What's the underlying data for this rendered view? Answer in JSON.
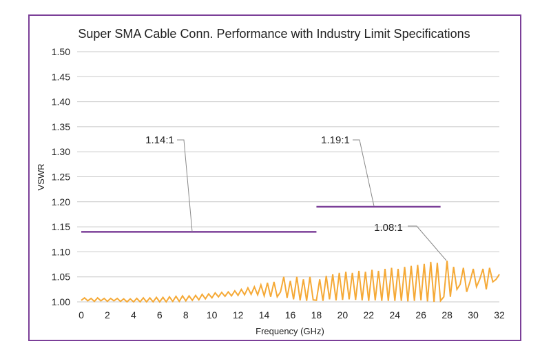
{
  "chart_data": {
    "type": "line",
    "title": "Super SMA Cable Conn. Performance with Industry Limit Specifications",
    "xlabel": "Frequency (GHz)",
    "ylabel": "VSWR",
    "xlim": [
      0,
      32
    ],
    "ylim": [
      1.0,
      1.5
    ],
    "grid": "horizontal",
    "x_ticks": [
      "0",
      "2",
      "4",
      "6",
      "8",
      "10",
      "12",
      "14",
      "16",
      "18",
      "20",
      "22",
      "24",
      "26",
      "28",
      "30",
      "32"
    ],
    "y_ticks": [
      "1.00",
      "1.05",
      "1.10",
      "1.15",
      "1.20",
      "1.25",
      "1.30",
      "1.35",
      "1.40",
      "1.45",
      "1.50"
    ],
    "colors": {
      "measured": "#f5a936",
      "limit": "#7b3f98",
      "frame": "#7b3f98",
      "leader": "#888888"
    },
    "limits": [
      {
        "label": "1.14:1",
        "value": 1.14,
        "x_range": [
          0,
          18
        ]
      },
      {
        "label": "1.19:1",
        "value": 1.19,
        "x_range": [
          18,
          27.5
        ]
      }
    ],
    "annotations": [
      {
        "label": "1.08:1",
        "x": 28,
        "y": 1.08
      }
    ],
    "series": [
      {
        "x": [
          0,
          0.25,
          0.5,
          0.75,
          1,
          1.25,
          1.5,
          1.75,
          2,
          2.25,
          2.5,
          2.75,
          3,
          3.25,
          3.5,
          3.75,
          4,
          4.25,
          4.5,
          4.75,
          5,
          5.25,
          5.5,
          5.75,
          6,
          6.25,
          6.5,
          6.75,
          7,
          7.25,
          7.5,
          7.75,
          8,
          8.25,
          8.5,
          8.75,
          9,
          9.25,
          9.5,
          9.75,
          10,
          10.25,
          10.5,
          10.75,
          11,
          11.25,
          11.5,
          11.75,
          12,
          12.25,
          12.5,
          12.75,
          13,
          13.25,
          13.5,
          13.75,
          14,
          14.25,
          14.5,
          14.75,
          15,
          15.25,
          15.5,
          15.75,
          16,
          16.25,
          16.5,
          16.75,
          17,
          17.25,
          17.5,
          17.75,
          18,
          18.25,
          18.5,
          18.75,
          19,
          19.25,
          19.5,
          19.75,
          20,
          20.25,
          20.5,
          20.75,
          21,
          21.25,
          21.5,
          21.75,
          22,
          22.25,
          22.5,
          22.75,
          23,
          23.25,
          23.5,
          23.75,
          24,
          24.25,
          24.5,
          24.75,
          25,
          25.25,
          25.5,
          25.75,
          26,
          26.25,
          26.5,
          26.75,
          27,
          27.25,
          27.5,
          27.75,
          28,
          28.25,
          28.5,
          28.75,
          29,
          29.25,
          29.5,
          29.75,
          30,
          30.25,
          30.5,
          30.75,
          31,
          31.25,
          31.5,
          31.75,
          32
        ],
        "y": [
          1.003,
          1.008,
          1.002,
          1.007,
          1.001,
          1.008,
          1.002,
          1.007,
          1.001,
          1.007,
          1.002,
          1.007,
          1.001,
          1.006,
          1.0,
          1.006,
          1.0,
          1.007,
          1.0,
          1.008,
          1.0,
          1.008,
          1.0,
          1.009,
          1.0,
          1.009,
          1.0,
          1.01,
          1.001,
          1.011,
          1.001,
          1.012,
          1.002,
          1.012,
          1.003,
          1.013,
          1.004,
          1.015,
          1.006,
          1.016,
          1.008,
          1.018,
          1.01,
          1.019,
          1.011,
          1.02,
          1.012,
          1.022,
          1.013,
          1.025,
          1.014,
          1.028,
          1.015,
          1.03,
          1.014,
          1.034,
          1.012,
          1.038,
          1.01,
          1.04,
          1.01,
          1.02,
          1.05,
          1.008,
          1.042,
          1.005,
          1.05,
          1.003,
          1.045,
          1.002,
          1.05,
          1.004,
          1.003,
          1.045,
          1.002,
          1.052,
          1.005,
          1.055,
          1.003,
          1.058,
          1.004,
          1.06,
          1.005,
          1.058,
          1.004,
          1.062,
          1.003,
          1.06,
          1.002,
          1.064,
          1.003,
          1.062,
          1.002,
          1.066,
          1.002,
          1.068,
          1.002,
          1.066,
          1.002,
          1.07,
          1.001,
          1.072,
          1.002,
          1.074,
          1.003,
          1.076,
          1.001,
          1.08,
          1.0,
          1.078,
          1.002,
          1.01,
          1.082,
          1.01,
          1.07,
          1.025,
          1.035,
          1.068,
          1.02,
          1.04,
          1.066,
          1.03,
          1.045,
          1.066,
          1.025,
          1.068,
          1.04,
          1.045,
          1.055
        ]
      }
    ]
  }
}
